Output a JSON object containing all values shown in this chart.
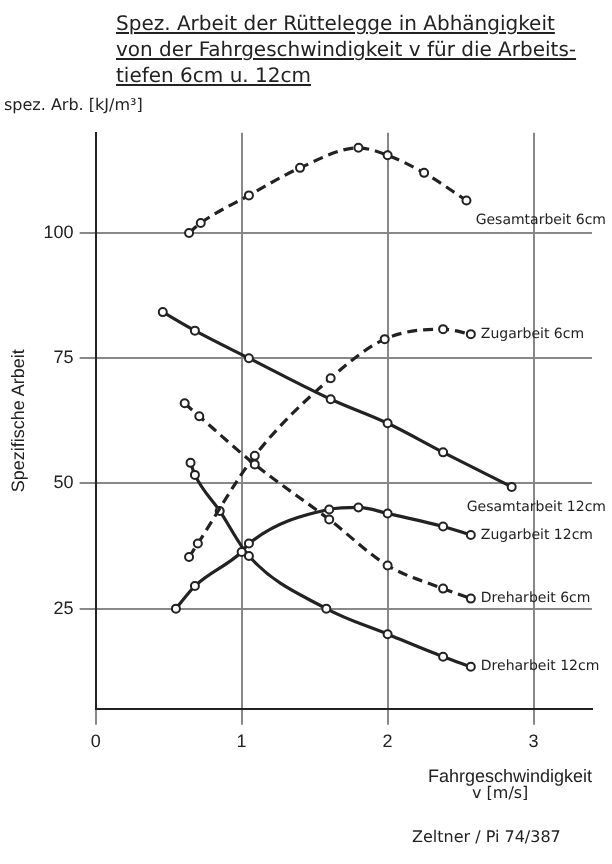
{
  "chart_data": {
    "type": "line",
    "title": "Spez. Arbeit der Rüttelegge in Abhängigkeit von der Fahrgeschwindigkeit v für die Arbeits-tiefen 6cm u. 12cm",
    "xlabel": "Fahrgeschwindigkeit",
    "ylabel": "Spezifische Arbeit",
    "annotations": [
      "spez. Arb. [kJ/m³]",
      "v [m/s]",
      "Zeltner / Pi 74/387"
    ],
    "xlim": [
      0,
      3.4
    ],
    "xticks": [
      0,
      1,
      2,
      3
    ],
    "ylim": [
      5,
      120
    ],
    "yticks": [
      25,
      50,
      75,
      100
    ],
    "grid": true,
    "legend": false,
    "marker": "circle",
    "series": [
      {
        "name": "Gesamtarbeit 6cm",
        "color": "#222222",
        "line_style": "dashed",
        "x": [
          0.64,
          0.72,
          1.05,
          1.4,
          1.8,
          2.0,
          2.25,
          2.54
        ],
        "values": [
          100,
          102,
          107.5,
          113,
          117,
          115.5,
          112,
          106.5
        ]
      },
      {
        "name": "Zugarbeit 6cm",
        "color": "#222222",
        "line_style": "dashed",
        "x": [
          0.64,
          0.7,
          1.09,
          1.61,
          1.98,
          2.38,
          2.57
        ],
        "values": [
          35.3,
          38,
          55.5,
          71,
          78.8,
          80.8,
          79.8
        ]
      },
      {
        "name": "Gesamtarbeit 12cm",
        "color": "#222222",
        "line_style": "solid",
        "x": [
          0.46,
          0.68,
          1.05,
          1.61,
          2.0,
          2.38,
          2.85
        ],
        "values": [
          84.2,
          80.5,
          75,
          66.8,
          62,
          56.2,
          49.3
        ]
      },
      {
        "name": "Zugarbeit 12cm",
        "color": "#222222",
        "line_style": "solid",
        "x": [
          0.55,
          0.68,
          1.0,
          1.05,
          1.6,
          1.8,
          2.0,
          2.38,
          2.57
        ],
        "values": [
          25,
          29.5,
          36.3,
          38,
          44.8,
          45.2,
          44,
          41.4,
          39.7
        ]
      },
      {
        "name": "Dreharbeit 6cm",
        "color": "#222222",
        "line_style": "dashed",
        "x": [
          0.61,
          0.71,
          1.09,
          1.6,
          2.0,
          2.38,
          2.57
        ],
        "values": [
          66,
          63.4,
          53.8,
          42.8,
          33.6,
          29,
          27
        ]
      },
      {
        "name": "Dreharbeit 12cm",
        "color": "#222222",
        "line_style": "solid",
        "x": [
          0.65,
          0.68,
          0.85,
          1.05,
          1.58,
          2.0,
          2.38,
          2.57
        ],
        "values": [
          54.1,
          51.7,
          44.5,
          35.5,
          25,
          19.9,
          15.4,
          13.4
        ]
      }
    ]
  }
}
